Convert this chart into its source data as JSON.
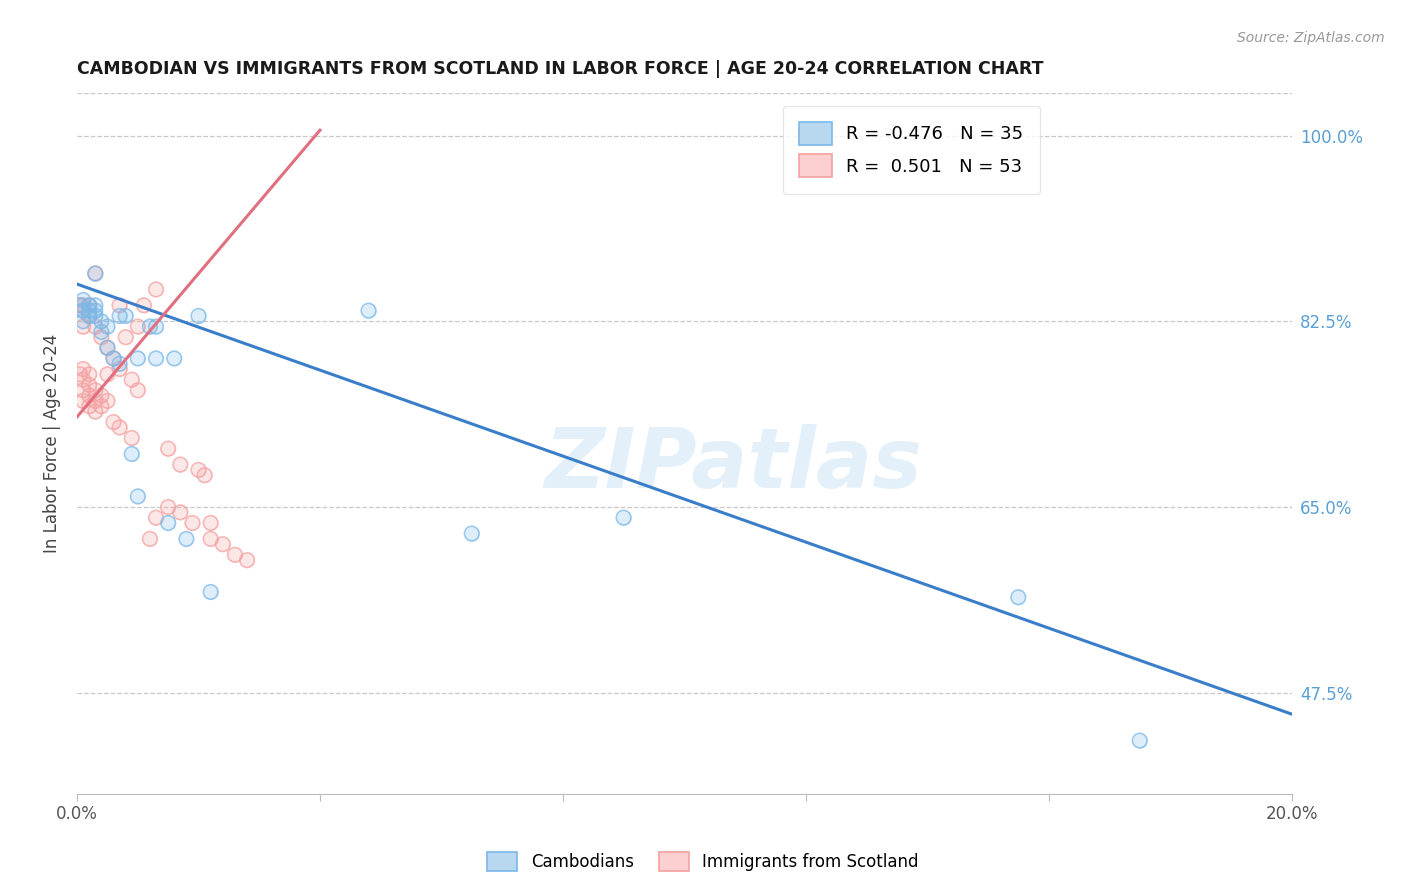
{
  "title": "CAMBODIAN VS IMMIGRANTS FROM SCOTLAND IN LABOR FORCE | AGE 20-24 CORRELATION CHART",
  "source": "Source: ZipAtlas.com",
  "ylabel": "In Labor Force | Age 20-24",
  "yticks": [
    47.5,
    65.0,
    82.5,
    100.0
  ],
  "xlim": [
    0.0,
    0.2
  ],
  "ylim": [
    0.38,
    1.04
  ],
  "cambodian_x": [
    0.0005,
    0.001,
    0.001,
    0.001,
    0.002,
    0.002,
    0.002,
    0.003,
    0.003,
    0.003,
    0.004,
    0.004,
    0.005,
    0.006,
    0.007,
    0.008,
    0.009,
    0.01,
    0.012,
    0.013,
    0.015,
    0.016,
    0.018,
    0.02,
    0.022,
    0.048,
    0.065,
    0.09,
    0.155,
    0.175,
    0.003,
    0.005,
    0.007,
    0.01,
    0.013
  ],
  "cambodian_y": [
    0.84,
    0.845,
    0.835,
    0.825,
    0.84,
    0.835,
    0.83,
    0.84,
    0.835,
    0.83,
    0.825,
    0.815,
    0.8,
    0.79,
    0.785,
    0.83,
    0.7,
    0.79,
    0.82,
    0.79,
    0.635,
    0.79,
    0.62,
    0.83,
    0.57,
    0.835,
    0.625,
    0.64,
    0.565,
    0.43,
    0.87,
    0.82,
    0.83,
    0.66,
    0.82
  ],
  "scotland_x": [
    0.0005,
    0.001,
    0.001,
    0.001,
    0.001,
    0.001,
    0.001,
    0.002,
    0.002,
    0.002,
    0.002,
    0.002,
    0.003,
    0.003,
    0.003,
    0.003,
    0.004,
    0.004,
    0.005,
    0.005,
    0.006,
    0.007,
    0.007,
    0.008,
    0.009,
    0.01,
    0.011,
    0.013,
    0.015,
    0.017,
    0.02,
    0.021,
    0.022,
    0.0005,
    0.001,
    0.002,
    0.003,
    0.004,
    0.005,
    0.006,
    0.007,
    0.009,
    0.01,
    0.012,
    0.013,
    0.015,
    0.017,
    0.019,
    0.022,
    0.024,
    0.026,
    0.028
  ],
  "scotland_y": [
    0.775,
    0.78,
    0.77,
    0.76,
    0.75,
    0.84,
    0.82,
    0.775,
    0.765,
    0.755,
    0.745,
    0.84,
    0.76,
    0.75,
    0.74,
    0.87,
    0.755,
    0.745,
    0.75,
    0.775,
    0.73,
    0.725,
    0.84,
    0.81,
    0.715,
    0.82,
    0.84,
    0.855,
    0.705,
    0.69,
    0.685,
    0.68,
    0.635,
    0.84,
    0.835,
    0.83,
    0.82,
    0.81,
    0.8,
    0.79,
    0.78,
    0.77,
    0.76,
    0.62,
    0.64,
    0.65,
    0.645,
    0.635,
    0.62,
    0.615,
    0.605,
    0.6
  ],
  "blue_line_x": [
    0.0,
    0.2
  ],
  "blue_line_y": [
    0.86,
    0.455
  ],
  "pink_line_x": [
    0.0,
    0.04
  ],
  "pink_line_y": [
    0.735,
    1.005
  ],
  "watermark_text": "ZIPatlas",
  "cambodian_color": "#7ab8e8",
  "scotland_color": "#f4a0a0",
  "blue_line_color": "#3a7dc9",
  "pink_line_color": "#e07080",
  "grid_color": "#c8c8c8",
  "background_color": "#ffffff",
  "right_axis_color": "#5a9fd4",
  "title_color": "#1a1a1a",
  "source_color": "#999999",
  "ylabel_color": "#444444"
}
